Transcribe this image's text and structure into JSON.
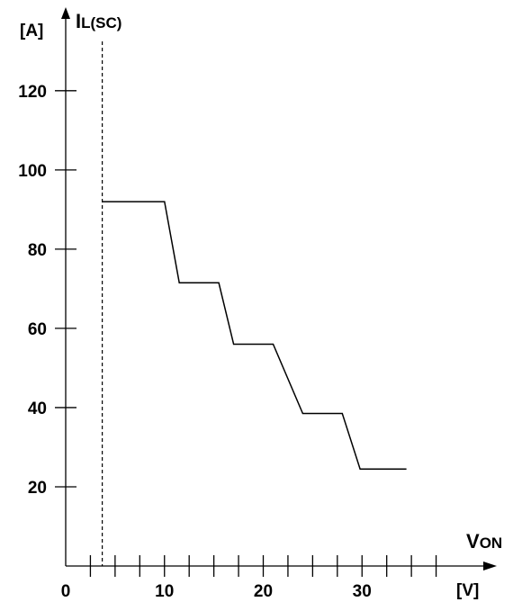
{
  "chart_data": {
    "type": "line",
    "title": "",
    "xlabel": {
      "main": "V",
      "sub": "ON",
      "unit": "[V]"
    },
    "ylabel": {
      "main": "I",
      "sub": "L(SC)",
      "unit": "[A]"
    },
    "origin_label": "0",
    "xlim": [
      0,
      40
    ],
    "ylim": [
      0,
      132
    ],
    "x_ticks": [
      2.5,
      5,
      7.5,
      10,
      12.5,
      15,
      17.5,
      20,
      22.5,
      25,
      27.5,
      30,
      32.5,
      35,
      37.5
    ],
    "x_tick_labels": [
      {
        "value": 0,
        "text": "0"
      },
      {
        "value": 10,
        "text": "10"
      },
      {
        "value": 20,
        "text": "20"
      },
      {
        "value": 30,
        "text": "30"
      }
    ],
    "y_ticks": [
      20,
      40,
      60,
      80,
      100,
      120
    ],
    "y_tick_labels": [
      {
        "value": 20,
        "text": "20"
      },
      {
        "value": 40,
        "text": "40"
      },
      {
        "value": 60,
        "text": "60"
      },
      {
        "value": 80,
        "text": "80"
      },
      {
        "value": 100,
        "text": "100"
      },
      {
        "value": 120,
        "text": "120"
      }
    ],
    "reference_line": {
      "x": 3.7,
      "style": "dashed"
    },
    "series": [
      {
        "x": [
          3.7,
          10,
          11.5,
          15.5,
          17,
          21,
          24,
          28,
          29.8,
          34.5
        ],
        "y": [
          92,
          92,
          71.5,
          71.5,
          56,
          56,
          38.5,
          38.5,
          24.5,
          24.5
        ]
      }
    ],
    "grid": false,
    "legend": "none"
  }
}
